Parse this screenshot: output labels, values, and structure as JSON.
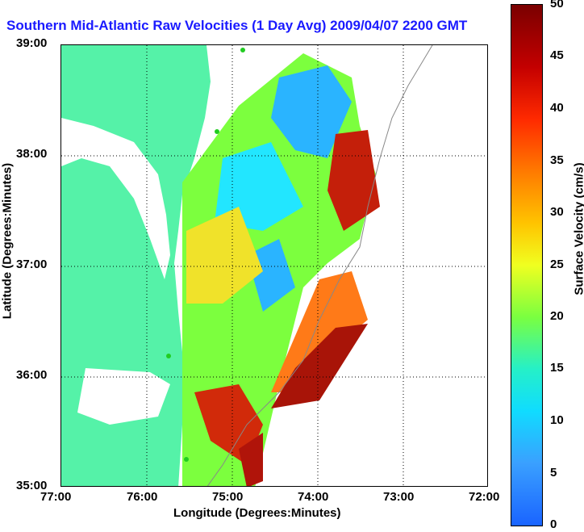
{
  "title": "Southern Mid-Atlantic Raw Velocities (1 Day Avg) 2009/04/07 2200 GMT",
  "axes": {
    "xlabel": "Longitude (Degrees:Minutes)",
    "ylabel": "Latitude (Degrees:Minutes)",
    "xticks": [
      "77:00",
      "76:00",
      "75:00",
      "74:00",
      "73:00",
      "72:00"
    ],
    "yticks": [
      "39:00",
      "38:00",
      "37:00",
      "36:00",
      "35:00"
    ]
  },
  "colorbar": {
    "label": "Surface Velocity (cm/s)",
    "ticks": [
      "50",
      "45",
      "40",
      "35",
      "30",
      "25",
      "20",
      "15",
      "10",
      "5",
      "0"
    ],
    "min": 0,
    "max": 50
  },
  "colors": {
    "land": "#55f2a8",
    "title": "#1a1aff",
    "station": "#22cc22"
  }
}
